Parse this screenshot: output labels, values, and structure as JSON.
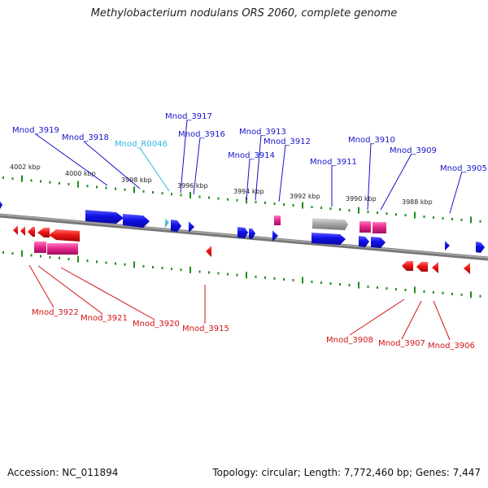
{
  "title": "Methylobacterium nodulans ORS 2060, complete genome",
  "footer": {
    "accession": "Accession: NC_011894",
    "info": "Topology: circular; Length: 7,772,460 bp; Genes: 7,447"
  },
  "kbp_labels": [
    "4002 kbp",
    "4000 kbp",
    "3998 kbp",
    "3996 kbp",
    "3994 kbp",
    "3992 kbp",
    "3990 kbp",
    "3988 kbp"
  ],
  "gene_labels_top": [
    "Mnod_3919",
    "Mnod_3918",
    "Mnod_R0046",
    "Mnod_3917",
    "Mnod_3916",
    "Mnod_3913",
    "Mnod_3914",
    "Mnod_3912",
    "Mnod_3911",
    "Mnod_3910",
    "Mnod_3909",
    "Mnod_3905"
  ],
  "gene_labels_bottom": [
    "Mnod_3922",
    "Mnod_3921",
    "Mnod_3920",
    "Mnod_3915",
    "Mnod_3908",
    "Mnod_3907",
    "Mnod_3906"
  ],
  "colors": {
    "forward_gene": "#1414e6",
    "reverse_gene": "#ee1616",
    "rna_gene": "#e8288c",
    "trna_gene": "#28b4e0",
    "pseudo_gene": "#a8a8a8",
    "backbone": "#777777",
    "ticks": "#1e8c1e",
    "label_forward": "#1616c8",
    "label_reverse": "#d21414"
  }
}
